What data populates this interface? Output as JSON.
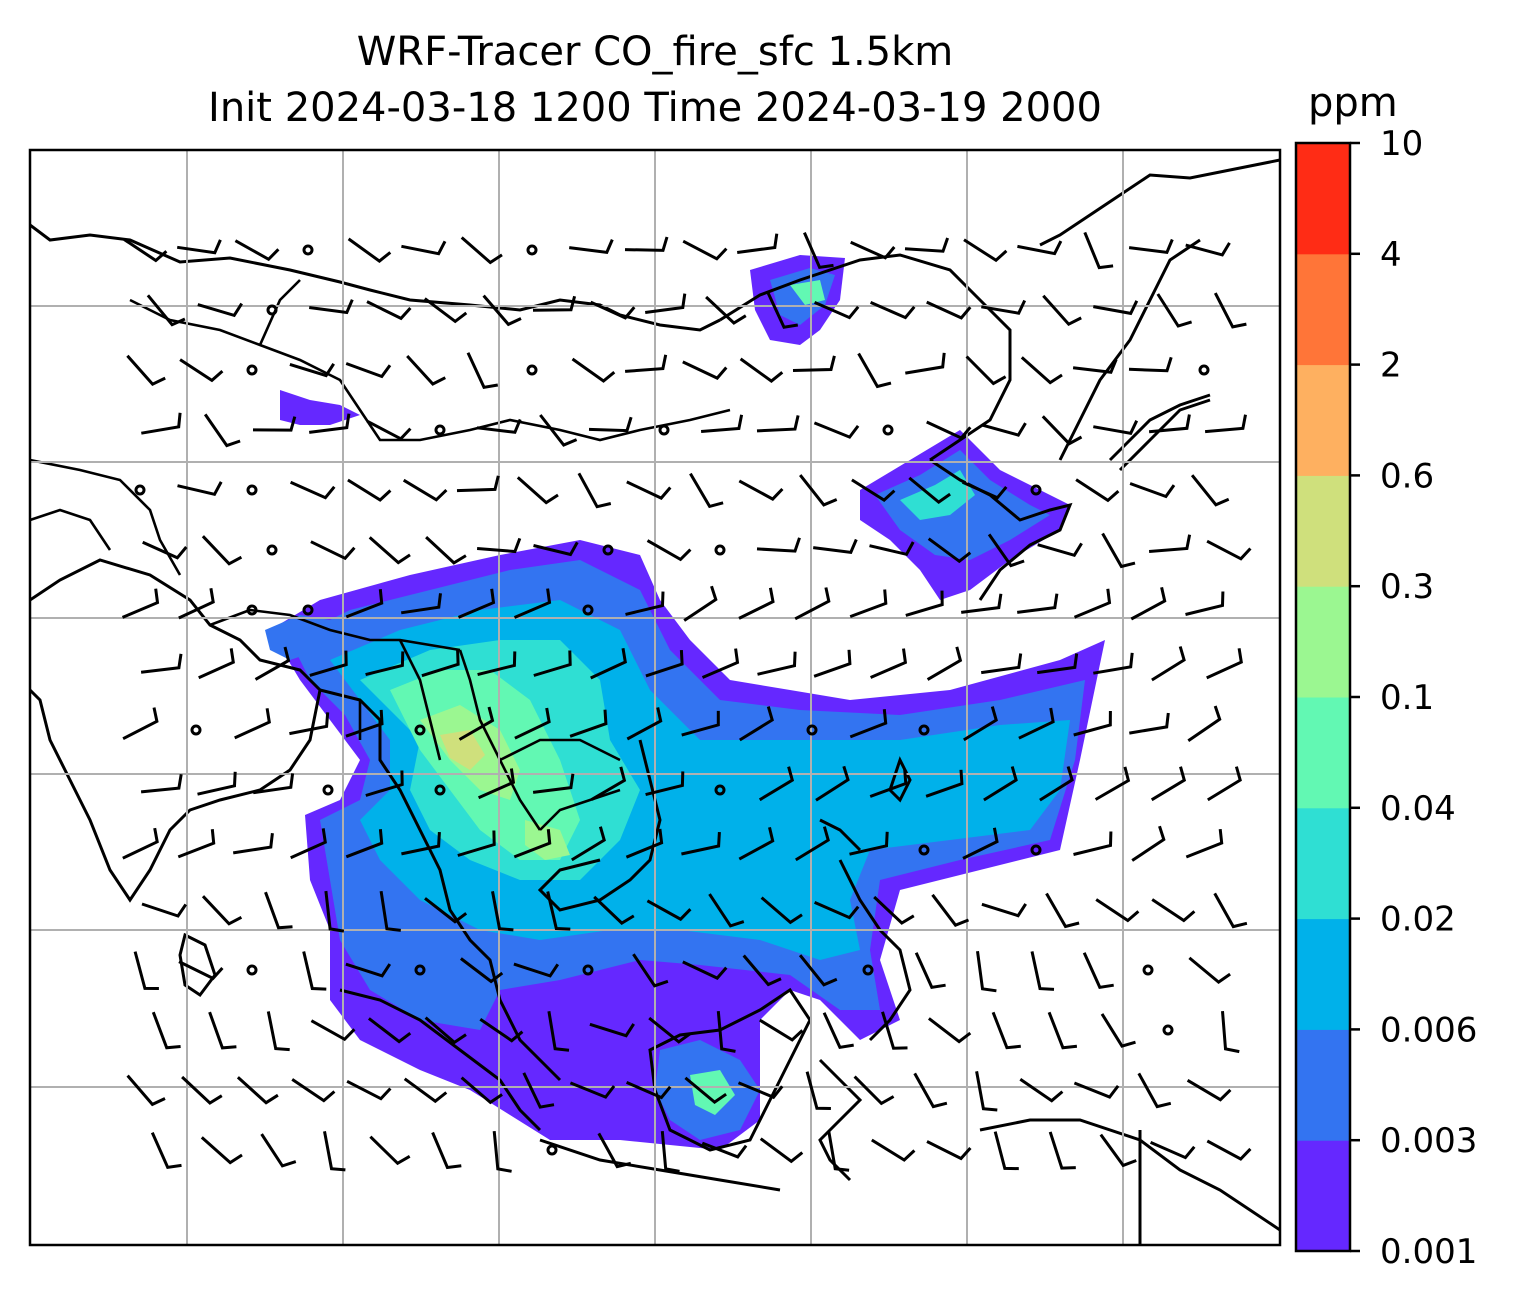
{
  "title_line1": "WRF-Tracer CO_fire_sfc 1.5km",
  "title_line2": "Init 2024-03-18 1200 Time 2024-03-19 2000",
  "colorbar": {
    "unit": "ppm",
    "levels": [
      "0.001",
      "0.003",
      "0.006",
      "0.02",
      "0.04",
      "0.1",
      "0.3",
      "0.6",
      "2",
      "4",
      "10"
    ],
    "colors": [
      "#6528ff",
      "#3374f1",
      "#00b1ea",
      "#2fdfd3",
      "#62f8b3",
      "#9bf791",
      "#cfe07c",
      "#feb060",
      "#ff7538",
      "#ff2c15"
    ]
  },
  "chart_data": {
    "type": "heatmap",
    "variable": "CO_fire_sfc",
    "unit": "ppm",
    "contour_levels": [
      0.001,
      0.003,
      0.006,
      0.02,
      0.04,
      0.1,
      0.3,
      0.6,
      2,
      4,
      10
    ],
    "overlays": [
      "coastlines",
      "country borders",
      "gridlines",
      "wind barbs"
    ],
    "grid": true
  },
  "map": {
    "coastline_color": "#000000",
    "grid_color": "#b0b0b0"
  }
}
